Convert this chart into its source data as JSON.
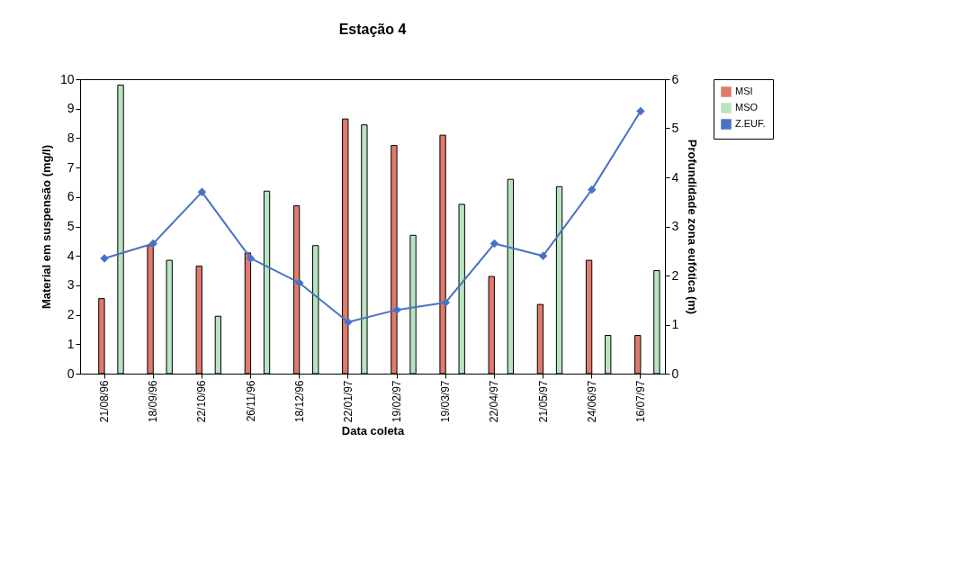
{
  "chart_data": {
    "type": "bar",
    "title": "Estação 4",
    "xlabel": "Data coleta",
    "ylabel": "Material em suspensão (mg/l)",
    "y2label": "Profundidade zona eufótica (m)",
    "categories": [
      "21/08/96",
      "18/09/96",
      "22/10/96",
      "26/11/96",
      "18/12/96",
      "22/01/97",
      "19/02/97",
      "19/03/97",
      "22/04/97",
      "21/05/97",
      "24/06/97",
      "16/07/97"
    ],
    "series": [
      {
        "name": "MSI",
        "color": "#e07a6c",
        "values": [
          2.55,
          4.35,
          3.65,
          4.1,
          5.7,
          8.65,
          7.75,
          8.1,
          3.3,
          2.35,
          3.85,
          1.3
        ]
      },
      {
        "name": "MSO",
        "color": "#b8e4c0",
        "values": [
          9.8,
          3.85,
          1.95,
          6.2,
          4.35,
          8.45,
          4.7,
          5.75,
          6.6,
          6.35,
          1.3,
          3.5
        ]
      },
      {
        "name": "Z.EUF.",
        "type": "line",
        "axis": "y2",
        "color": "#4a72c4",
        "marker": "diamond",
        "values": [
          2.35,
          2.65,
          3.7,
          2.35,
          1.85,
          1.05,
          1.3,
          1.45,
          2.65,
          2.4,
          3.75,
          5.35
        ]
      }
    ],
    "ylim": [
      0,
      10
    ],
    "yticks": [
      0,
      1,
      2,
      3,
      4,
      5,
      6,
      7,
      8,
      9,
      10
    ],
    "y2lim": [
      0,
      6
    ],
    "y2ticks": [
      0,
      1,
      2,
      3,
      4,
      5,
      6
    ],
    "grid": false,
    "legend": "right"
  }
}
